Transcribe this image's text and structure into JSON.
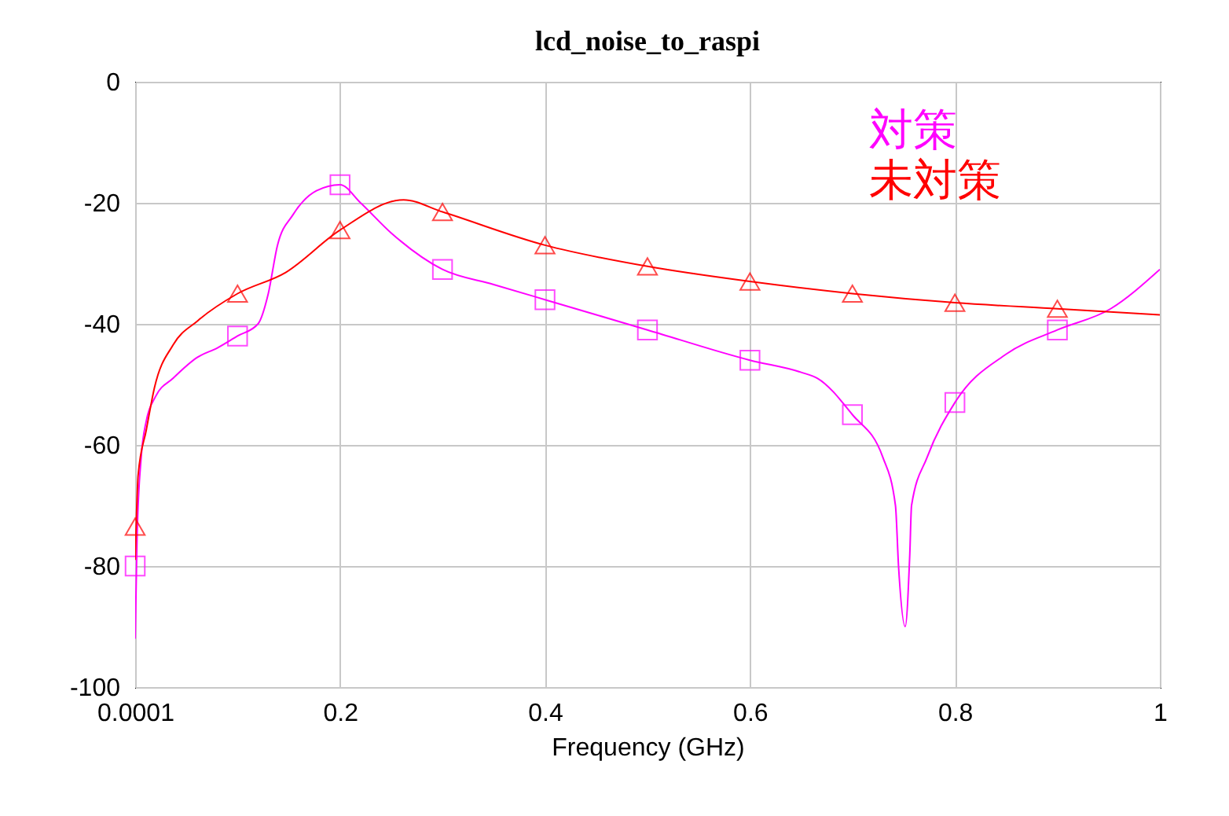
{
  "chart_data": {
    "type": "line",
    "title": "lcd_noise_to_raspi",
    "xlabel": "Frequency (GHz)",
    "xlim": [
      0.0001,
      1
    ],
    "xticks": [
      0.0001,
      0.2,
      0.4,
      0.6,
      0.8,
      1
    ],
    "ylim": [
      -100,
      0
    ],
    "yticks": [
      -100,
      -80,
      -60,
      -40,
      -20,
      0
    ],
    "grid": true,
    "legend": "top right",
    "line_style": "solid",
    "series": [
      {
        "name": "対策",
        "color": "#ff00ff",
        "marker": "none",
        "x": [
          0.0001,
          0.002,
          0.006,
          0.011,
          0.02,
          0.037,
          0.061,
          0.08,
          0.1,
          0.12,
          0.13,
          0.139,
          0.154,
          0.177,
          0.2,
          0.22,
          0.25,
          0.3,
          0.35,
          0.4,
          0.5,
          0.6,
          0.65,
          0.666,
          0.7,
          0.7296,
          0.742,
          0.745,
          0.7515,
          0.756,
          0.7577,
          0.773,
          0.8,
          0.85,
          0.9,
          0.952,
          1
        ],
        "values": [
          -92,
          -75,
          -62,
          -56,
          -52,
          -49,
          -45.5,
          -44,
          -42,
          -40,
          -35,
          -27,
          -22,
          -18,
          -17,
          -20,
          -25,
          -31,
          -33.5,
          -36,
          -41,
          -46,
          -48,
          -49,
          -55,
          -62,
          -70,
          -80,
          -90,
          -78,
          -70,
          -62,
          -53,
          -45,
          -41,
          -37.5,
          -31
        ]
      },
      {
        "color": "#ff00ff",
        "type": "scatter",
        "marker": "square",
        "x": [
          0.0001,
          0.1,
          0.2,
          0.3,
          0.4,
          0.5,
          0.6,
          0.7,
          0.8,
          0.9
        ],
        "values": [
          -80,
          -42,
          -17,
          -31,
          -36,
          -41,
          -46,
          -55,
          -53,
          -41
        ]
      },
      {
        "name": "未対策",
        "color": "#ff0000",
        "marker": "none",
        "x": [
          0.0001,
          0.0015,
          0.003,
          0.011,
          0.019,
          0.037,
          0.061,
          0.1,
          0.147,
          0.2,
          0.262,
          0.3,
          0.4,
          0.5,
          0.6,
          0.7,
          0.8,
          0.9,
          1
        ],
        "values": [
          -79,
          -71,
          -65,
          -57.5,
          -50.5,
          -43.5,
          -39.5,
          -35,
          -31.5,
          -24.5,
          -19.5,
          -21.5,
          -27,
          -30.5,
          -33,
          -35,
          -36.5,
          -37.5,
          -38.5
        ]
      },
      {
        "color": "#ff0000",
        "type": "scatter",
        "marker": "triangle",
        "x": [
          0.0001,
          0.1,
          0.2,
          0.3,
          0.4,
          0.5,
          0.6,
          0.7,
          0.8,
          0.9
        ],
        "values": [
          -73.5,
          -35,
          -24.5,
          -21.5,
          -27,
          -30.5,
          -33,
          -35,
          -36.5,
          -37.5
        ]
      }
    ]
  }
}
